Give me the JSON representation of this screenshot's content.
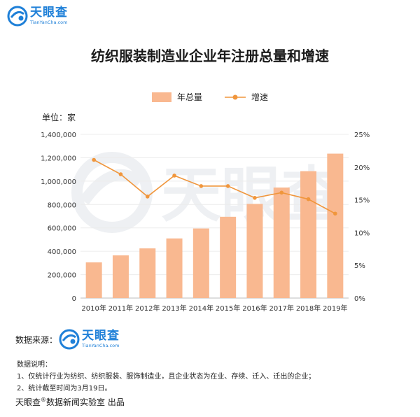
{
  "brand": {
    "name": "天眼查",
    "url": "TianYanCha.com",
    "color": "#1f80d8"
  },
  "header": {
    "title": "纺织服装制造业企业年注册总量和增速"
  },
  "unit_label": "单位：家",
  "source": {
    "label": "数据来源："
  },
  "notes": {
    "heading": "数据说明：",
    "items": [
      "1、仅统计行业为纺织、纺织服装、服饰制造业，且企业状态为在业、存续、迁入、迁出的企业；",
      "2、统计截至时间为3月19日。"
    ]
  },
  "credit": {
    "prefix": "天眼查",
    "mark": "®",
    "suffix": "数据新闻实验室 出品"
  },
  "chart_data": {
    "type": "bar",
    "title": "纺织服装制造业企业年注册总量和增速",
    "categories": [
      "2010年",
      "2011年",
      "2012年",
      "2013年",
      "2014年",
      "2015年",
      "2016年",
      "2017年",
      "2018年",
      "2019年"
    ],
    "series": [
      {
        "name": "年总量",
        "type": "bar",
        "axis": "left",
        "color": "#f9b890",
        "values": [
          305000,
          365000,
          425000,
          510000,
          595000,
          695000,
          805000,
          945000,
          1085000,
          1235000
        ]
      },
      {
        "name": "增速",
        "type": "line",
        "axis": "right",
        "color": "#f0963c",
        "values": [
          21.1,
          18.9,
          15.5,
          18.7,
          17.1,
          17.1,
          15.3,
          16.1,
          15.1,
          12.9
        ]
      }
    ],
    "y_left": {
      "ylim": [
        0,
        1400000
      ],
      "ticks": [
        "0",
        "200,000",
        "400,000",
        "600,000",
        "800,000",
        "1,000,000",
        "1,200,000",
        "1,400,000"
      ],
      "tick_values": [
        0,
        200000,
        400000,
        600000,
        800000,
        1000000,
        1200000,
        1400000
      ]
    },
    "y_right": {
      "ylim": [
        0,
        25
      ],
      "ticks": [
        "0%",
        "5%",
        "10%",
        "15%",
        "20%",
        "25%"
      ],
      "tick_values": [
        0,
        5,
        10,
        15,
        20,
        25
      ]
    },
    "grid": true,
    "legend": "top-center"
  }
}
